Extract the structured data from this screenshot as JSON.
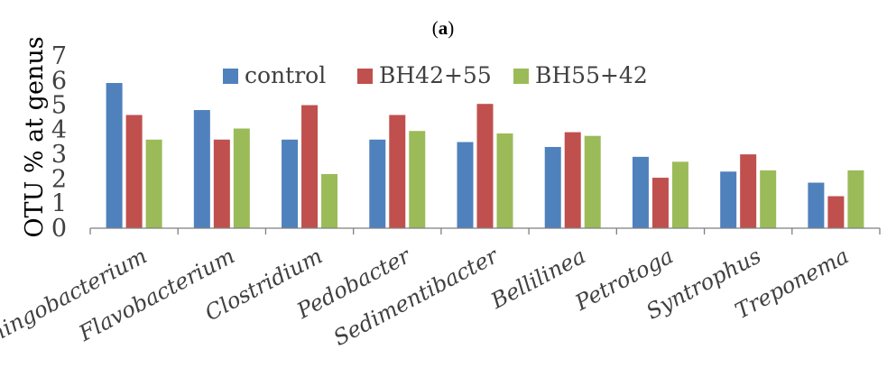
{
  "chart_data": {
    "type": "bar",
    "panel_label": {
      "open": "(",
      "letter": "a",
      "close": ")"
    },
    "ylabel": "OTU % at genus",
    "ylim": [
      0,
      7
    ],
    "yticks": [
      "0",
      "1",
      "2",
      "3",
      "4",
      "5",
      "6",
      "7"
    ],
    "grid": false,
    "legend_position": "top",
    "categories": [
      "Sphingobacterium",
      "Flavobacterium",
      "Clostridium",
      "Pedobacter",
      "Sedimentibacter",
      "Bellilinea",
      "Petrotoga",
      "Syntrophus",
      "Treponema"
    ],
    "series": [
      {
        "name": "control",
        "color": "#4f81bd",
        "values": [
          5.9,
          4.8,
          3.6,
          3.6,
          3.5,
          3.3,
          2.9,
          2.3,
          1.85
        ]
      },
      {
        "name": "BH42+55",
        "color": "#c0504d",
        "values": [
          4.6,
          3.6,
          5.0,
          4.6,
          5.05,
          3.9,
          2.05,
          3.0,
          1.3
        ]
      },
      {
        "name": "BH55+42",
        "color": "#9bbb59",
        "values": [
          3.6,
          4.05,
          2.2,
          3.95,
          3.85,
          3.75,
          2.7,
          2.35,
          2.35
        ]
      }
    ]
  }
}
